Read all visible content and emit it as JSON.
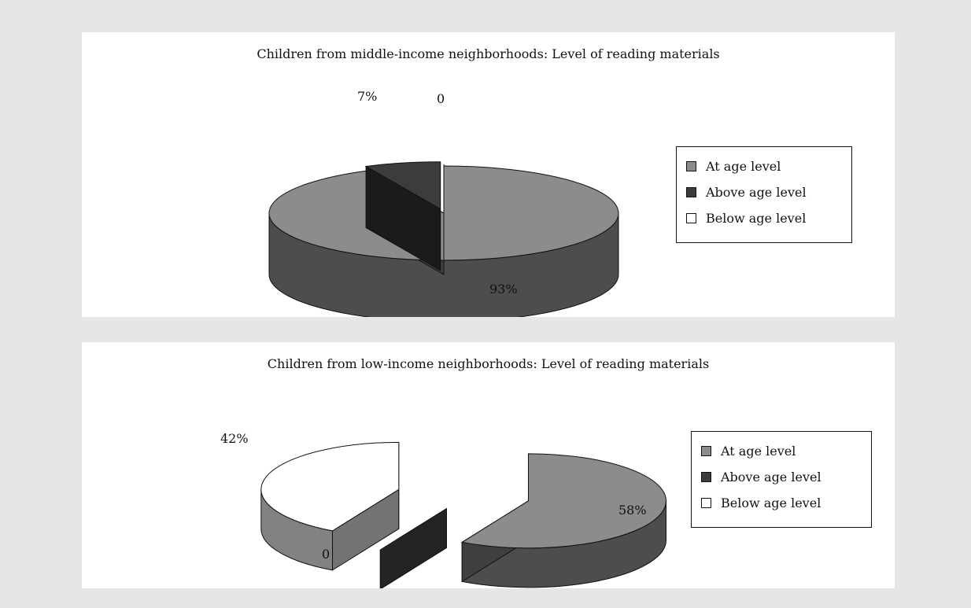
{
  "chart_data": [
    {
      "type": "pie",
      "title": "Children from middle-income neighborhoods: Level of reading materials",
      "categories": [
        "At age level",
        "Above age level",
        "Below age level"
      ],
      "values": [
        93,
        7,
        0
      ],
      "data_labels": [
        "93%",
        "7%",
        "0"
      ],
      "colors": [
        "#8c8c8c",
        "#3c3c3c",
        "#ffffff"
      ],
      "legend": "right",
      "style": "3d-exploded"
    },
    {
      "type": "pie",
      "title": "Children from low-income neighborhoods: Level of reading materials",
      "categories": [
        "At age level",
        "Above age level",
        "Below age level"
      ],
      "values": [
        58,
        0,
        42
      ],
      "data_labels": [
        "58%",
        "0",
        "42%"
      ],
      "colors": [
        "#8c8c8c",
        "#3c3c3c",
        "#ffffff"
      ],
      "legend": "right",
      "style": "3d-exploded"
    }
  ]
}
